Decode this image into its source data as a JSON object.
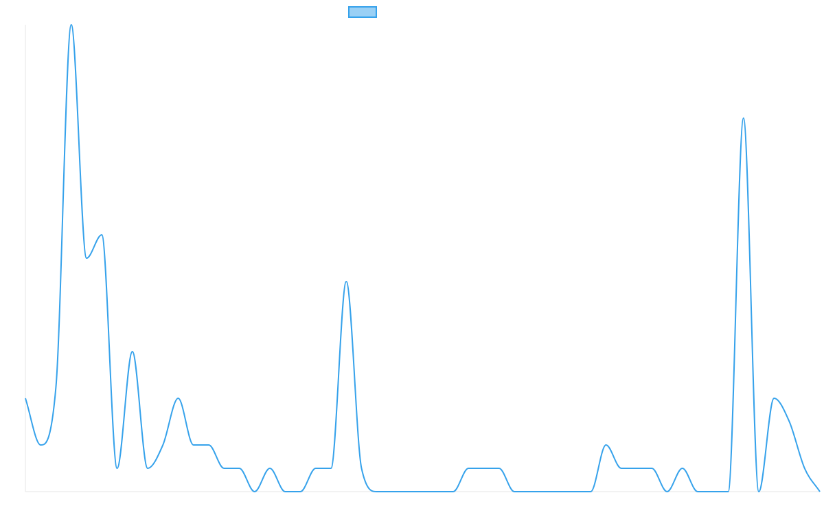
{
  "colors": {
    "line": "#36a2eb",
    "legend_fill": "#9ad0f5",
    "axis": "#e5e5e5"
  },
  "chart_data": {
    "type": "line",
    "title": "",
    "xlabel": "",
    "ylabel": "",
    "grid": false,
    "legend_position": "top",
    "ylim": [
      0,
      20
    ],
    "series": [
      {
        "values": [
          4,
          2,
          4.5,
          20,
          10,
          11,
          1,
          6,
          1,
          2,
          4,
          2,
          2,
          1,
          1,
          0,
          1,
          0,
          0,
          1,
          1,
          9,
          1,
          0,
          0,
          0,
          0,
          0,
          0,
          1,
          1,
          1,
          0,
          0,
          0,
          0,
          0,
          0,
          2,
          1,
          1,
          1,
          0,
          1,
          0,
          0,
          0,
          16,
          0,
          4,
          3,
          1,
          0
        ]
      }
    ]
  }
}
